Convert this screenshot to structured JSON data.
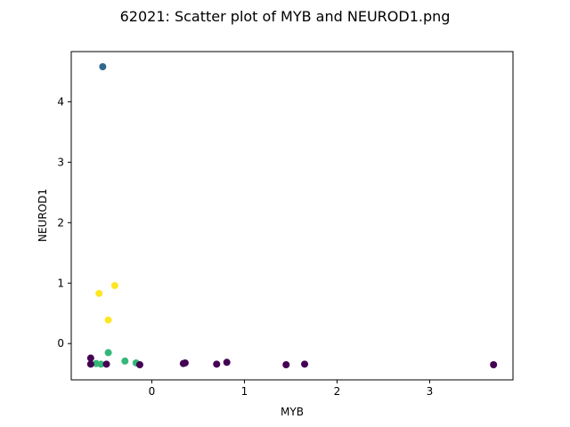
{
  "chart_data": {
    "type": "scatter",
    "title": "62021: Scatter plot of MYB and NEUROD1.png",
    "xlabel": "MYB",
    "ylabel": "NEUROD1",
    "xlim": [
      -0.87,
      3.9
    ],
    "ylim": [
      -0.6,
      4.83
    ],
    "xticks": [
      0,
      1,
      2,
      3
    ],
    "yticks": [
      0,
      1,
      2,
      3,
      4
    ],
    "grid": false,
    "legend": "none",
    "points": [
      {
        "x": -0.53,
        "y": 4.58,
        "color": "#31688e"
      },
      {
        "x": -0.4,
        "y": 0.96,
        "color": "#fde725"
      },
      {
        "x": -0.57,
        "y": 0.83,
        "color": "#fde725"
      },
      {
        "x": -0.47,
        "y": 0.39,
        "color": "#fde725"
      },
      {
        "x": -0.47,
        "y": -0.15,
        "color": "#35b779"
      },
      {
        "x": -0.29,
        "y": -0.29,
        "color": "#35b779"
      },
      {
        "x": -0.17,
        "y": -0.32,
        "color": "#35b779"
      },
      {
        "x": -0.6,
        "y": -0.33,
        "color": "#35b779"
      },
      {
        "x": -0.55,
        "y": -0.34,
        "color": "#35b779"
      },
      {
        "x": -0.66,
        "y": -0.24,
        "color": "#440154"
      },
      {
        "x": -0.66,
        "y": -0.34,
        "color": "#440154"
      },
      {
        "x": -0.49,
        "y": -0.34,
        "color": "#440154"
      },
      {
        "x": -0.13,
        "y": -0.35,
        "color": "#440154"
      },
      {
        "x": 0.34,
        "y": -0.33,
        "color": "#440154"
      },
      {
        "x": 0.36,
        "y": -0.32,
        "color": "#440154"
      },
      {
        "x": 0.7,
        "y": -0.34,
        "color": "#440154"
      },
      {
        "x": 0.81,
        "y": -0.31,
        "color": "#440154"
      },
      {
        "x": 1.45,
        "y": -0.35,
        "color": "#440154"
      },
      {
        "x": 1.65,
        "y": -0.34,
        "color": "#440154"
      },
      {
        "x": 3.69,
        "y": -0.35,
        "color": "#440154"
      }
    ]
  }
}
